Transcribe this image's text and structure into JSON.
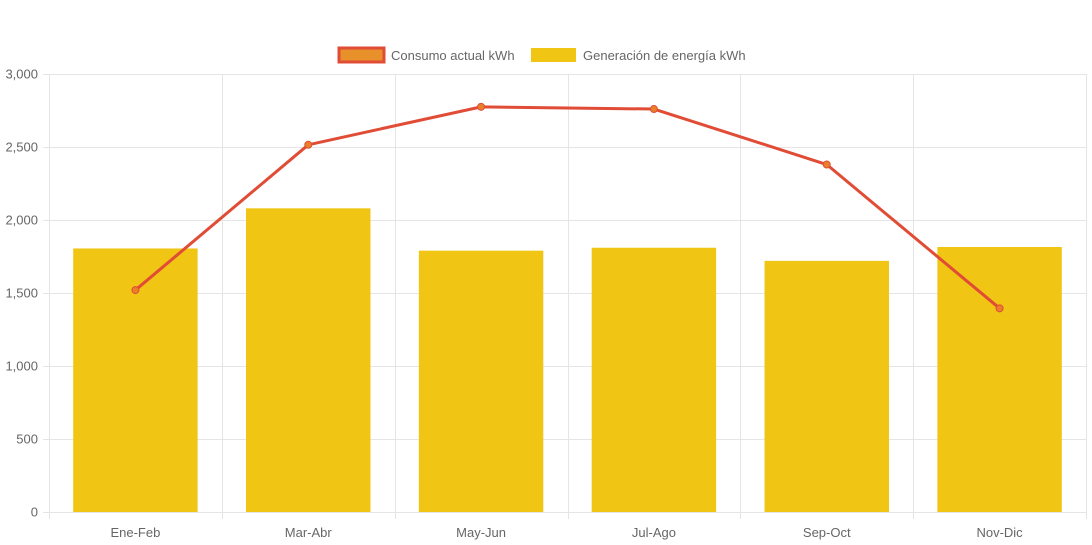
{
  "chart_data": {
    "type": "bar",
    "title": "",
    "xlabel": "",
    "ylabel": "",
    "categories": [
      "Ene-Feb",
      "Mar-Abr",
      "May-Jun",
      "Jul-Ago",
      "Sep-Oct",
      "Nov-Dic"
    ],
    "ylim": [
      0,
      3000
    ],
    "yticks": [
      0,
      500,
      1000,
      1500,
      2000,
      2500,
      3000
    ],
    "ytick_labels": [
      "0",
      "500",
      "1,000",
      "1,500",
      "2,000",
      "2,500",
      "3,000"
    ],
    "grid": true,
    "legend_position": "top-center",
    "series": [
      {
        "name": "Consumo actual kWh",
        "type": "line",
        "color": "#e04c35",
        "point_color": "#e8802a",
        "values": [
          1520,
          2515,
          2775,
          2760,
          2380,
          1395
        ]
      },
      {
        "name": "Generación de energía kWh",
        "type": "bar",
        "color": "#f0c514",
        "values": [
          1805,
          2080,
          1790,
          1810,
          1720,
          1815
        ]
      }
    ]
  }
}
